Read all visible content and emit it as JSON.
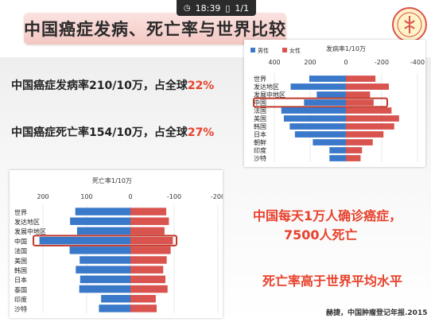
{
  "statusbar": {
    "time": "18:39",
    "pages": "1/1"
  },
  "title": "中国癌症发病、死亡率与世界比较",
  "stats": {
    "incidence_prefix": "中国癌症发病率210/10万，占全球",
    "incidence_pct": "22%",
    "mortality_prefix": "中国癌症死亡率154/10万，占全球",
    "mortality_pct": "27%"
  },
  "callouts": {
    "line1": "中国每天1万人确诊癌症，",
    "line2": "7500人死亡",
    "line3": "死亡率高于世界平均水平"
  },
  "source": "赫捷，中国肿瘤登记年报.2015",
  "colors": {
    "male": "#3a78c9",
    "female": "#d9534f",
    "highlight": "#c0392b",
    "accent": "#e8412c"
  },
  "chart_data": [
    {
      "type": "bar",
      "orientation": "horizontal-butterfly",
      "title": "发病率1/10万",
      "categories": [
        "世界",
        "发达地区",
        "发展中地区",
        "中国",
        "法国",
        "美国",
        "韩国",
        "日本",
        "朝鲜",
        "印度",
        "沙特"
      ],
      "highlight": "中国",
      "series": [
        {
          "name": "男性",
          "values": [
            205,
            309,
            163,
            234,
            361,
            347,
            314,
            285,
            185,
            92,
            92
          ]
        },
        {
          "name": "女性",
          "values": [
            165,
            240,
            135,
            155,
            255,
            297,
            270,
            210,
            150,
            90,
            82
          ]
        }
      ],
      "xticks": [
        400,
        200,
        0,
        -200,
        -400
      ],
      "xlim": [
        400,
        -400
      ],
      "legend": "top-left"
    },
    {
      "type": "bar",
      "orientation": "horizontal-butterfly",
      "title": "死亡率1/10万",
      "categories": [
        "世界",
        "发达地区",
        "发展中地区",
        "中国",
        "法国",
        "美国",
        "韩国",
        "日本",
        "泰国",
        "印度",
        "沙特"
      ],
      "highlight": "中国",
      "series": [
        {
          "name": "男性",
          "values": [
            126,
            138,
            122,
            208,
            139,
            116,
            125,
            115,
            117,
            67,
            72
          ]
        },
        {
          "name": "女性",
          "values": [
            82,
            88,
            78,
            97,
            92,
            83,
            75,
            80,
            85,
            58,
            60
          ]
        }
      ],
      "xticks": [
        200,
        100,
        0,
        -100,
        -200
      ],
      "xlim": [
        200,
        -200
      ]
    }
  ]
}
